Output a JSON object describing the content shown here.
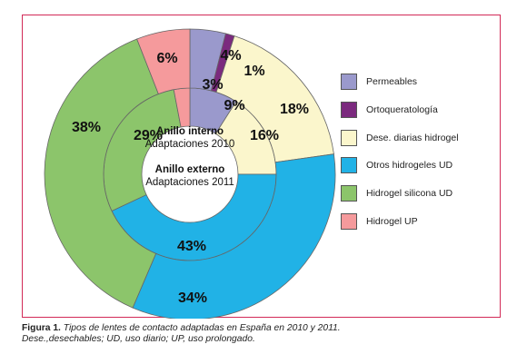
{
  "chart_data": {
    "type": "pie",
    "rings": [
      {
        "name": "Anillo interno",
        "caption": "Adaptaciones 2010",
        "values": [
          9,
          0,
          16,
          43,
          29,
          3
        ],
        "labels": [
          "9%",
          "",
          "16%",
          "43%",
          "29%",
          "3%"
        ]
      },
      {
        "name": "Anillo externo",
        "caption": "Adaptaciones 2011",
        "values": [
          4,
          1,
          18,
          34,
          38,
          6
        ],
        "labels": [
          "4%",
          "1%",
          "18%",
          "34%",
          "38%",
          "6%"
        ]
      }
    ],
    "categories": [
      "Permeables",
      "Ortoqueratología",
      "Dese. diarias hidrogel",
      "Otros hidrogeles UD",
      "Hidrogel silicona UD",
      "Hidrogel UP"
    ],
    "colors": [
      "#9a99cc",
      "#7b2a7e",
      "#fbf6cc",
      "#21b2e6",
      "#8cc56b",
      "#f59a9c"
    ],
    "legend_position": "right"
  },
  "caption": {
    "label": "Figura 1.",
    "line1": "Tipos de lentes de contacto adaptadas en España en 2010 y 2011.",
    "line2": "Dese.,desechables; UD, uso diario; UP, uso prolongado."
  }
}
